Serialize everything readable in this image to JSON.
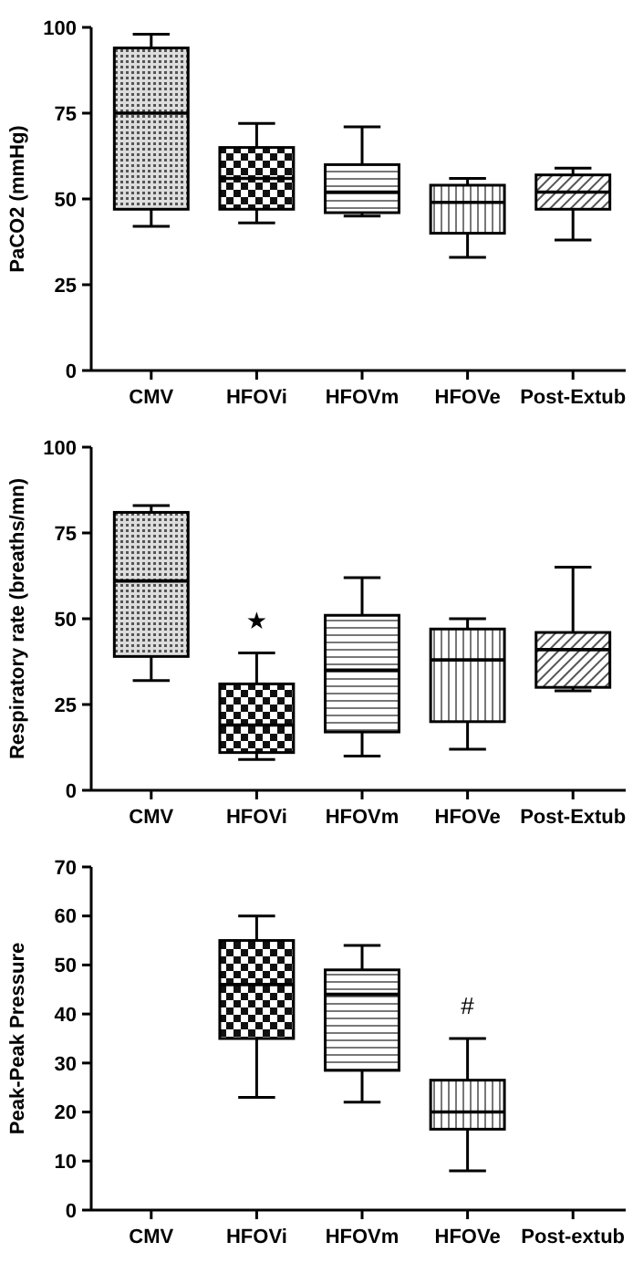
{
  "chart_data": [
    {
      "type": "box",
      "ylabel": "PaCO2 (mmHg)",
      "categories": [
        "CMV",
        "HFOVi",
        "HFOVm",
        "HFOVe",
        "Post-Extub"
      ],
      "ylim": [
        0,
        100
      ],
      "yticks": [
        0,
        25,
        50,
        75,
        100
      ],
      "color": "#000000",
      "boxes": [
        {
          "low": 42,
          "q1": 47,
          "median": 75,
          "q3": 94,
          "high": 98
        },
        {
          "low": 43,
          "q1": 47,
          "median": 56,
          "q3": 65,
          "high": 72
        },
        {
          "low": 45,
          "q1": 46,
          "median": 52,
          "q3": 60,
          "high": 71
        },
        {
          "low": 33,
          "q1": 40,
          "median": 49,
          "q3": 54,
          "high": 56
        },
        {
          "low": 38,
          "q1": 47,
          "median": 52,
          "q3": 57,
          "high": 59
        }
      ]
    },
    {
      "type": "box",
      "ylabel": "Respiratory rate (breaths/mn)",
      "categories": [
        "CMV",
        "HFOVi",
        "HFOVm",
        "HFOVe",
        "Post-Extub"
      ],
      "ylim": [
        0,
        100
      ],
      "yticks": [
        0,
        25,
        50,
        75,
        100
      ],
      "color": "#000000",
      "boxes": [
        {
          "low": 32,
          "q1": 39,
          "median": 61,
          "q3": 81,
          "high": 83
        },
        {
          "low": 9,
          "q1": 11,
          "median": 19,
          "q3": 31,
          "high": 40
        },
        {
          "low": 10,
          "q1": 17,
          "median": 35,
          "q3": 51,
          "high": 62
        },
        {
          "low": 12,
          "q1": 20,
          "median": 38,
          "q3": 47,
          "high": 50
        },
        {
          "low": 29,
          "q1": 30,
          "median": 41,
          "q3": 46,
          "high": 65
        }
      ],
      "annotations": [
        "★"
      ]
    },
    {
      "type": "box",
      "ylabel": "Peak-Peak Pressure",
      "categories": [
        "CMV",
        "HFOVi",
        "HFOVm",
        "HFOVe",
        "Post-extub"
      ],
      "ylim": [
        0,
        70
      ],
      "yticks": [
        0,
        10,
        20,
        30,
        40,
        50,
        60,
        70
      ],
      "color": "#000000",
      "boxes": [
        null,
        {
          "low": 23,
          "q1": 35,
          "median": 46,
          "q3": 55,
          "high": 60
        },
        {
          "low": 22,
          "q1": 28.5,
          "median": 44,
          "q3": 49,
          "high": 54
        },
        {
          "low": 8,
          "q1": 16.5,
          "median": 20,
          "q3": 26.5,
          "high": 35
        },
        null
      ],
      "annotations": [
        "#"
      ]
    }
  ]
}
